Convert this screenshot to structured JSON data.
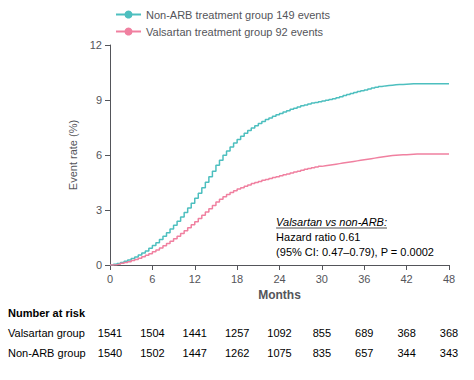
{
  "chart_data": {
    "type": "step",
    "xlabel": "Months",
    "ylabel": "Event rate (%)",
    "xlim": [
      0,
      48
    ],
    "ylim": [
      0,
      12
    ],
    "xticks": [
      0,
      6,
      12,
      18,
      24,
      30,
      36,
      42,
      48
    ],
    "yticks": [
      0,
      3,
      6,
      9,
      12
    ],
    "grid": false,
    "legend": "upper left",
    "x": [
      0,
      0.5,
      1,
      1.5,
      2,
      2.5,
      3,
      3.5,
      4,
      4.5,
      5,
      5.5,
      6,
      6.5,
      7,
      7.5,
      8,
      8.5,
      9,
      9.5,
      10,
      10.5,
      11,
      11.5,
      12,
      12.5,
      13,
      13.5,
      14,
      14.5,
      15,
      15.5,
      16,
      16.5,
      17,
      17.5,
      18,
      18.5,
      19,
      19.5,
      20,
      20.5,
      21,
      21.5,
      22,
      22.5,
      23,
      23.5,
      24,
      24.5,
      25,
      25.5,
      26,
      26.5,
      27,
      27.5,
      28,
      28.5,
      29,
      29.5,
      30,
      30.5,
      31,
      31.5,
      32,
      32.5,
      33,
      33.5,
      34,
      34.5,
      35,
      35.5,
      36,
      36.5,
      37,
      37.5,
      38,
      38.5,
      39,
      39.5,
      40,
      40.5,
      41,
      41.5,
      42,
      42.5,
      43,
      43.5,
      44,
      44.5,
      45,
      45.5,
      46,
      46.5,
      47,
      47.5,
      48
    ],
    "series": [
      {
        "name": "Non-ARB treatment group 149 events",
        "color": "#4DBFBF",
        "values": [
          0.0,
          0.04,
          0.08,
          0.14,
          0.2,
          0.27,
          0.35,
          0.44,
          0.54,
          0.65,
          0.77,
          0.91,
          1.06,
          1.22,
          1.39,
          1.57,
          1.76,
          1.96,
          2.17,
          2.39,
          2.62,
          2.86,
          3.11,
          3.37,
          3.64,
          3.92,
          4.21,
          4.51,
          4.81,
          5.12,
          5.44,
          5.72,
          5.98,
          6.22,
          6.44,
          6.65,
          6.85,
          7.02,
          7.18,
          7.33,
          7.47,
          7.6,
          7.72,
          7.83,
          7.93,
          8.02,
          8.11,
          8.19,
          8.27,
          8.35,
          8.42,
          8.49,
          8.55,
          8.62,
          8.68,
          8.73,
          8.78,
          8.83,
          8.87,
          8.91,
          8.95,
          8.99,
          9.03,
          9.07,
          9.12,
          9.18,
          9.24,
          9.3,
          9.36,
          9.41,
          9.46,
          9.51,
          9.55,
          9.6,
          9.65,
          9.7,
          9.74,
          9.77,
          9.79,
          9.81,
          9.83,
          9.84,
          9.85,
          9.86,
          9.87,
          9.88,
          9.88,
          9.88,
          9.88,
          9.88,
          9.88,
          9.88,
          9.88,
          9.88,
          9.88,
          9.88,
          9.88
        ]
      },
      {
        "name": "Valsartan treatment group 92 events",
        "color": "#F080A0",
        "values": [
          0.0,
          0.02,
          0.05,
          0.09,
          0.13,
          0.18,
          0.24,
          0.3,
          0.37,
          0.45,
          0.53,
          0.62,
          0.72,
          0.82,
          0.93,
          1.05,
          1.17,
          1.3,
          1.43,
          1.57,
          1.72,
          1.87,
          2.03,
          2.19,
          2.36,
          2.53,
          2.71,
          2.89,
          3.07,
          3.25,
          3.43,
          3.58,
          3.72,
          3.84,
          3.95,
          4.05,
          4.14,
          4.22,
          4.3,
          4.37,
          4.44,
          4.5,
          4.56,
          4.62,
          4.67,
          4.72,
          4.77,
          4.82,
          4.87,
          4.92,
          4.97,
          5.02,
          5.07,
          5.12,
          5.17,
          5.22,
          5.26,
          5.3,
          5.34,
          5.38,
          5.41,
          5.44,
          5.47,
          5.5,
          5.53,
          5.56,
          5.59,
          5.62,
          5.65,
          5.68,
          5.71,
          5.74,
          5.77,
          5.8,
          5.83,
          5.86,
          5.89,
          5.92,
          5.95,
          5.97,
          5.99,
          6.0,
          6.01,
          6.02,
          6.03,
          6.04,
          6.05,
          6.06,
          6.06,
          6.06,
          6.06,
          6.06,
          6.06,
          6.06,
          6.06,
          6.06,
          6.06
        ]
      }
    ],
    "annotation": [
      "Valsartan vs non-ARB:",
      "Hazard ratio 0.61",
      "(95% CI: 0.47–0.79), P = 0.0002"
    ],
    "risk_table": {
      "title": "Number at risk",
      "x": [
        0,
        6,
        12,
        18,
        24,
        30,
        36,
        42,
        48
      ],
      "rows": [
        {
          "label": "Valsartan group",
          "values": [
            1541,
            1504,
            1441,
            1257,
            1092,
            855,
            689,
            368,
            368
          ]
        },
        {
          "label": "Non-ARB group",
          "values": [
            1540,
            1502,
            1447,
            1262,
            1075,
            835,
            657,
            344,
            343
          ]
        }
      ]
    }
  }
}
